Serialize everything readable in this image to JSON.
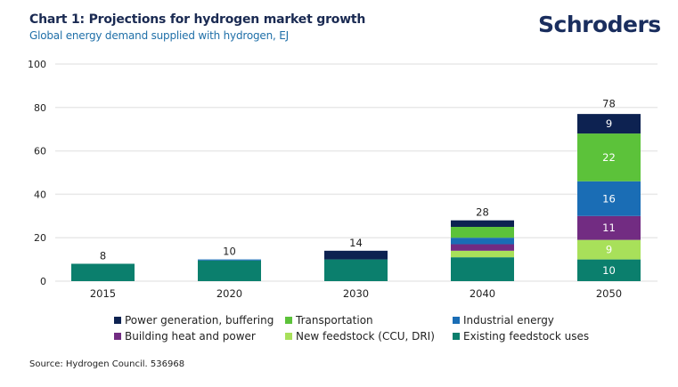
{
  "header": {
    "title": "Chart 1: Projections for hydrogen market growth",
    "subtitle": "Global energy demand supplied with hydrogen, EJ",
    "logo_text": "Schroders"
  },
  "colors": {
    "title": "#1a2a52",
    "subtitle": "#1f6fa8",
    "logo": "#1a2e5e",
    "gridline": "#e8e8e8"
  },
  "chart_data": {
    "type": "bar",
    "stacked": true,
    "title": "Chart 1: Projections for hydrogen market growth",
    "subtitle": "Global energy demand supplied with hydrogen, EJ",
    "xlabel": "",
    "ylabel": "",
    "ylim": [
      0,
      100
    ],
    "yticks": [
      0,
      20,
      40,
      60,
      80,
      100
    ],
    "grid": true,
    "legend_position": "bottom",
    "categories": [
      "2015",
      "2020",
      "2030",
      "2040",
      "2050"
    ],
    "totals": [
      8,
      10,
      14,
      28,
      78
    ],
    "series": [
      {
        "name": "Existing feedstock uses",
        "color": "#0b7f6d",
        "values": [
          8,
          9.5,
          10,
          11,
          10
        ]
      },
      {
        "name": "New feedstock (CCU, DRI)",
        "color": "#a8e05a",
        "values": [
          0,
          0,
          0,
          3,
          9
        ]
      },
      {
        "name": "Building heat and power",
        "color": "#722c82",
        "values": [
          0,
          0,
          0,
          3,
          11
        ]
      },
      {
        "name": "Industrial energy",
        "color": "#1a6db5",
        "values": [
          0,
          0.5,
          0,
          3,
          16
        ]
      },
      {
        "name": "Transportation",
        "color": "#5cc23a",
        "values": [
          0,
          0,
          0,
          5,
          22
        ]
      },
      {
        "name": "Power generation, buffering",
        "color": "#0d2251",
        "values": [
          0,
          0,
          4,
          3,
          9
        ]
      }
    ],
    "segment_labels": {
      "2050": [
        "10",
        "9",
        "11",
        "16",
        "22",
        "9"
      ]
    }
  },
  "legend": {
    "items": [
      {
        "label": "Power generation, buffering",
        "color": "#0d2251"
      },
      {
        "label": "Transportation",
        "color": "#5cc23a"
      },
      {
        "label": "Industrial energy",
        "color": "#1a6db5"
      },
      {
        "label": "Building heat and power",
        "color": "#722c82"
      },
      {
        "label": "New feedstock (CCU, DRI)",
        "color": "#a8e05a"
      },
      {
        "label": "Existing feedstock uses",
        "color": "#0b7f6d"
      }
    ]
  },
  "footer": {
    "source": "Source: Hydrogen Council. 536968"
  }
}
